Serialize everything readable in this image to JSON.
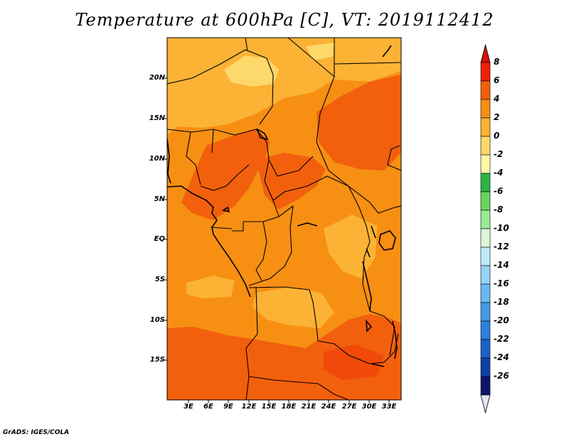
{
  "title": "Temperature at 600hPa [C], VT: 2019112412",
  "credit": "GrADS: IGES/COLA",
  "map": {
    "region": "Central Africa",
    "lat_range": [
      -20,
      25
    ],
    "lon_range": [
      0,
      35
    ],
    "lat_ticks": [
      "20N",
      "15N",
      "10N",
      "5N",
      "EQ",
      "5S",
      "10S",
      "15S"
    ],
    "lon_ticks": [
      "3E",
      "6E",
      "9E",
      "12E",
      "15E",
      "18E",
      "21E",
      "24E",
      "27E",
      "30E",
      "33E"
    ]
  },
  "colorbar": {
    "labels": [
      "8",
      "6",
      "4",
      "2",
      "0",
      "-2",
      "-4",
      "-6",
      "-8",
      "-10",
      "-12",
      "-14",
      "-16",
      "-18",
      "-20",
      "-22",
      "-24",
      "-26"
    ],
    "colors": [
      "#ee1f06",
      "#f2600d",
      "#f78f13",
      "#fcb234",
      "#fdd86a",
      "#fef7a8",
      "#2db446",
      "#6cd25e",
      "#9de995",
      "#dbf8d7",
      "#bdeaf8",
      "#95d3f5",
      "#6ab8f0",
      "#459ae6",
      "#2c80db",
      "#1d60c9",
      "#113fa6",
      "#0b1668"
    ],
    "top_arrow_color": "#d11203",
    "bottom_arrow_color": "#e3e3fb"
  }
}
